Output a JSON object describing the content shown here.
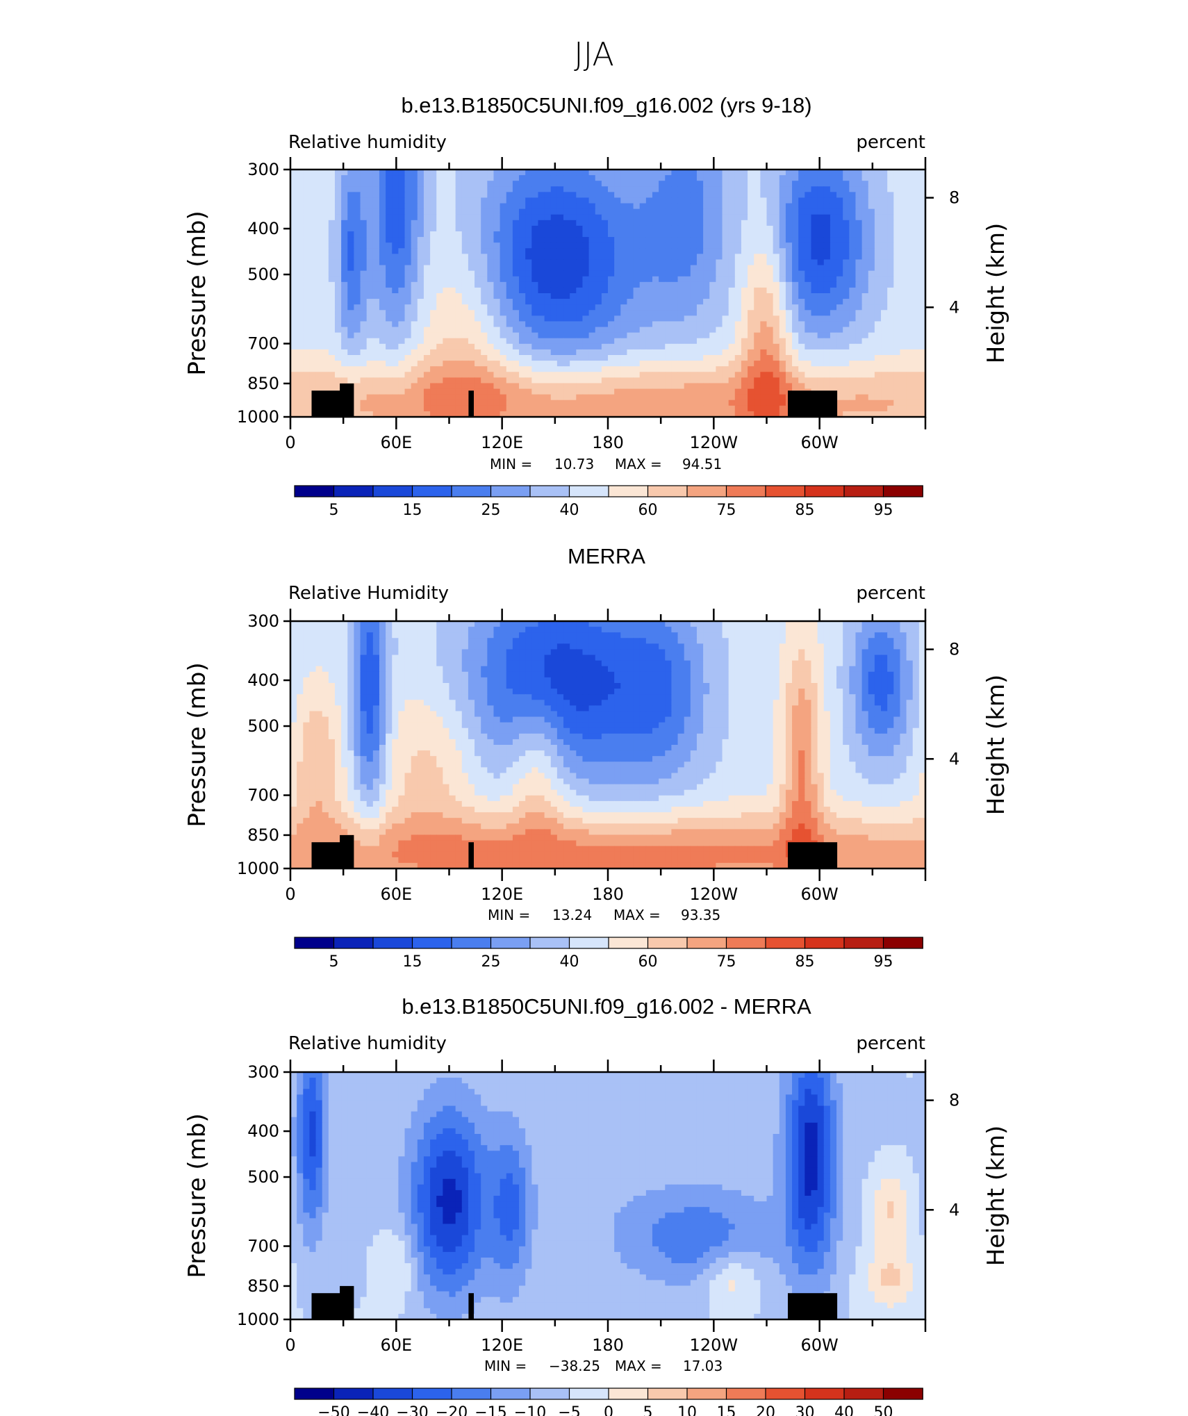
{
  "figure": {
    "title": "JJA"
  },
  "chart_data": [
    {
      "type": "heatmap",
      "title": "b.e13.B1850C5UNI.f09_g16.002 (yrs 9-18)",
      "variable_label": "Relative humidity",
      "units": "percent",
      "ylabel": "Pressure (mb)",
      "ylabel_right": "Height (km)",
      "y_ticks": [
        "300",
        "400",
        "500",
        "700",
        "850",
        "1000"
      ],
      "y_right_ticks": [
        "8",
        "4"
      ],
      "x_ticks": [
        "0",
        "60E",
        "120E",
        "180",
        "120W",
        "60W"
      ],
      "min_label": "MIN =",
      "min_value": "10.73",
      "max_label": "MAX =",
      "max_value": "94.51",
      "colorbar_labels": [
        "5",
        "15",
        "25",
        "40",
        "60",
        "75",
        "85",
        "95"
      ],
      "colorbar_colors": [
        "#00008b",
        "#0a23b8",
        "#1a48d9",
        "#2c63ec",
        "#4a7eef",
        "#7a9ff3",
        "#a9c1f6",
        "#d6e5fb",
        "#fbe6d5",
        "#f8c9ad",
        "#f4a480",
        "#ef7b57",
        "#e65231",
        "#d5331c",
        "#b71e12",
        "#8b0000"
      ],
      "fields": [
        {
          "x": 60,
          "y": 8,
          "sx": 10,
          "sy": 3.5,
          "a": -1.9
        },
        {
          "x": 35,
          "y": 6,
          "sx": 6,
          "sy": 2.5,
          "a": -1.6
        },
        {
          "x": 150,
          "y": 5.8,
          "sx": 35,
          "sy": 2.8,
          "a": -2.4
        },
        {
          "x": 225,
          "y": 7.5,
          "sx": 18,
          "sy": 3,
          "a": -1.2
        },
        {
          "x": 300,
          "y": 6.5,
          "sx": 20,
          "sy": 2.5,
          "a": -2.2
        },
        {
          "x": 180,
          "y": 0.5,
          "sx": 200,
          "sy": 1.1,
          "a": 1.6
        },
        {
          "x": 100,
          "y": 3,
          "sx": 20,
          "sy": 3,
          "a": 1
        },
        {
          "x": 270,
          "y": 3,
          "sx": 10,
          "sy": 3,
          "a": 1.5
        }
      ]
    },
    {
      "type": "heatmap",
      "title": "MERRA",
      "variable_label": "Relative Humidity",
      "units": "percent",
      "ylabel": "Pressure (mb)",
      "ylabel_right": "Height (km)",
      "y_ticks": [
        "300",
        "400",
        "500",
        "700",
        "850",
        "1000"
      ],
      "y_right_ticks": [
        "8",
        "4"
      ],
      "x_ticks": [
        "0",
        "60E",
        "120E",
        "180",
        "120W",
        "60W"
      ],
      "min_label": "MIN =",
      "min_value": "13.24",
      "max_label": "MAX =",
      "max_value": "93.35",
      "colorbar_labels": [
        "5",
        "15",
        "25",
        "40",
        "60",
        "75",
        "85",
        "95"
      ],
      "colorbar_colors": [
        "#00008b",
        "#0a23b8",
        "#1a48d9",
        "#2c63ec",
        "#4a7eef",
        "#7a9ff3",
        "#a9c1f6",
        "#d6e5fb",
        "#fbe6d5",
        "#f8c9ad",
        "#f4a480",
        "#ef7b57",
        "#e65231",
        "#d5331c",
        "#b71e12",
        "#8b0000"
      ],
      "fields": [
        {
          "x": 45,
          "y": 6.5,
          "sx": 7,
          "sy": 3,
          "a": -2
        },
        {
          "x": 150,
          "y": 6.8,
          "sx": 35,
          "sy": 2.6,
          "a": -2.4
        },
        {
          "x": 210,
          "y": 6.5,
          "sx": 20,
          "sy": 2.5,
          "a": -1.3
        },
        {
          "x": 335,
          "y": 6.8,
          "sx": 12,
          "sy": 2,
          "a": -1.8
        },
        {
          "x": 180,
          "y": 0.5,
          "sx": 200,
          "sy": 1.1,
          "a": 1.8
        },
        {
          "x": 15,
          "y": 3.8,
          "sx": 10,
          "sy": 2,
          "a": 1.1
        },
        {
          "x": 140,
          "y": 3.8,
          "sx": 12,
          "sy": 2,
          "a": 1.3
        },
        {
          "x": 80,
          "y": 3.8,
          "sx": 20,
          "sy": 2,
          "a": 0.9
        },
        {
          "x": 290,
          "y": 4,
          "sx": 8,
          "sy": 3,
          "a": 1.6
        }
      ]
    },
    {
      "type": "heatmap",
      "title": "b.e13.B1850C5UNI.f09_g16.002 - MERRA",
      "variable_label": "Relative humidity",
      "units": "percent",
      "ylabel": "Pressure (mb)",
      "ylabel_right": "Height (km)",
      "y_ticks": [
        "300",
        "400",
        "500",
        "700",
        "850",
        "1000"
      ],
      "y_right_ticks": [
        "8",
        "4"
      ],
      "x_ticks": [
        "0",
        "60E",
        "120E",
        "180",
        "120W",
        "60W"
      ],
      "min_label": "MIN =",
      "min_value": "−38.25",
      "max_label": "MAX =",
      "max_value": "17.03",
      "colorbar_labels": [
        "−50",
        "−40",
        "−30",
        "−20",
        "−15",
        "−10",
        "−5",
        "0",
        "5",
        "10",
        "15",
        "20",
        "30",
        "40",
        "50"
      ],
      "colorbar_colors": [
        "#00008b",
        "#0a23b8",
        "#1a48d9",
        "#2c63ec",
        "#4a7eef",
        "#7a9ff3",
        "#a9c1f6",
        "#d6e5fb",
        "#fbe6d5",
        "#f8c9ad",
        "#f4a480",
        "#ef7b57",
        "#e65231",
        "#d5331c",
        "#b71e12",
        "#8b0000"
      ],
      "fields": [
        {
          "x": 12,
          "y": 6.8,
          "sx": 6,
          "sy": 2.5,
          "a": -1.9
        },
        {
          "x": 90,
          "y": 4.3,
          "sx": 15,
          "sy": 2.4,
          "a": -2.3
        },
        {
          "x": 125,
          "y": 4,
          "sx": 8,
          "sy": 2,
          "a": -1.3
        },
        {
          "x": 295,
          "y": 6,
          "sx": 10,
          "sy": 3,
          "a": -2.4
        },
        {
          "x": 230,
          "y": 3,
          "sx": 30,
          "sy": 1.2,
          "a": -1.1
        },
        {
          "x": 180,
          "y": 5,
          "sx": 200,
          "sy": 6,
          "a": -0.4
        },
        {
          "x": 340,
          "y": 4,
          "sx": 8,
          "sy": 1,
          "a": 1
        },
        {
          "x": 250,
          "y": 1.5,
          "sx": 10,
          "sy": 0.8,
          "a": 0.9
        },
        {
          "x": 340,
          "y": 1.5,
          "sx": 10,
          "sy": 0.8,
          "a": 1
        },
        {
          "x": 60,
          "y": 2,
          "sx": 8,
          "sy": 1,
          "a": 0.7
        }
      ]
    }
  ]
}
